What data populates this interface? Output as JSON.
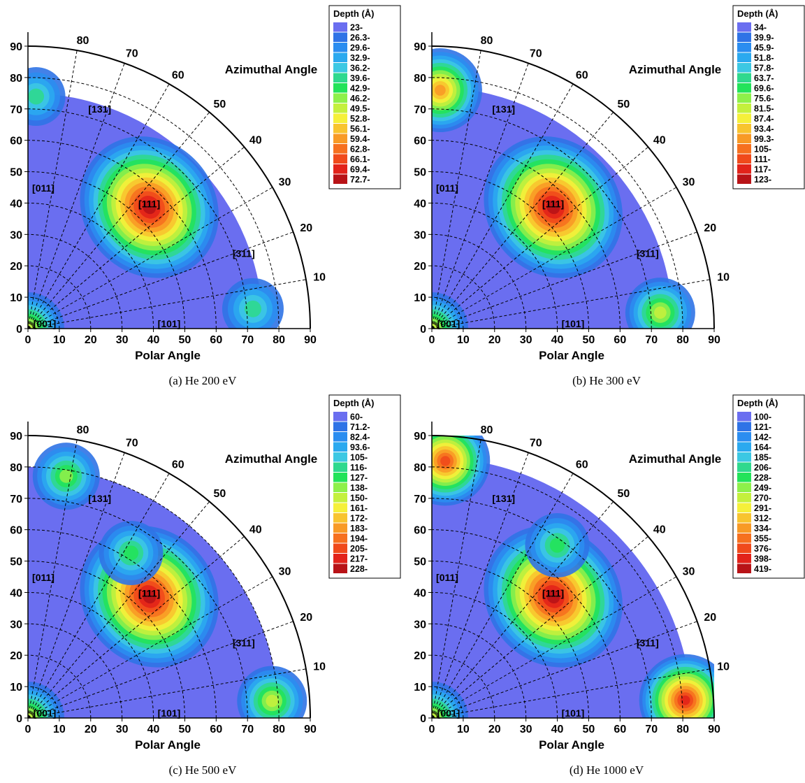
{
  "chart_data": [
    {
      "type": "heatmap",
      "subtype": "polar-quadrant",
      "caption": "(a) He 200 eV",
      "xlabel": "Polar Angle",
      "azimuth_label": "Azimuthal Angle",
      "x_ticks": [
        "0",
        "10",
        "20",
        "30",
        "40",
        "50",
        "60",
        "70",
        "80",
        "90"
      ],
      "y_ticks": [
        "0",
        "10",
        "20",
        "30",
        "40",
        "50",
        "60",
        "70",
        "80",
        "90"
      ],
      "xlim": [
        0,
        90
      ],
      "ylim": [
        0,
        90
      ],
      "azimuth_ticks": [
        "10",
        "20",
        "30",
        "40",
        "50",
        "60",
        "70",
        "80"
      ],
      "poles": [
        {
          "label": "[001]",
          "polar": 0,
          "azimuth": 0
        },
        {
          "label": "[101]",
          "polar": 45,
          "azimuth": 0
        },
        {
          "label": "[011]",
          "polar": 45,
          "azimuth": 90
        },
        {
          "label": "[111]",
          "polar": 54.7,
          "azimuth": 45
        },
        {
          "label": "[131]",
          "polar": 72.5,
          "azimuth": 71.6
        },
        {
          "label": "[311]",
          "polar": 72.5,
          "azimuth": 18.4
        }
      ],
      "legend_title": "Depth (Å)",
      "legend_values": [
        "23-",
        "26.3-",
        "29.6-",
        "32.9-",
        "36.2-",
        "39.6-",
        "42.9-",
        "46.2-",
        "49.5-",
        "52.8-",
        "56.1-",
        "59.4-",
        "62.8-",
        "66.1-",
        "69.4-",
        "72.7-"
      ],
      "legend_placement": "top-right",
      "data_extent_polar": 75,
      "hotspots": [
        {
          "polar": 0,
          "azimuth": 0,
          "level": 0.55
        },
        {
          "polar": 54.7,
          "azimuth": 45,
          "level": 1.0
        },
        {
          "polar": 72,
          "azimuth": 5,
          "level": 0.35
        },
        {
          "polar": 74,
          "azimuth": 88,
          "level": 0.3
        }
      ]
    },
    {
      "type": "heatmap",
      "subtype": "polar-quadrant",
      "caption": "(b) He 300 eV",
      "xlabel": "Polar Angle",
      "azimuth_label": "Azimuthal Angle",
      "x_ticks": [
        "0",
        "10",
        "20",
        "30",
        "40",
        "50",
        "60",
        "70",
        "80",
        "90"
      ],
      "y_ticks": [
        "0",
        "10",
        "20",
        "30",
        "40",
        "50",
        "60",
        "70",
        "80",
        "90"
      ],
      "xlim": [
        0,
        90
      ],
      "ylim": [
        0,
        90
      ],
      "azimuth_ticks": [
        "10",
        "20",
        "30",
        "40",
        "50",
        "60",
        "70",
        "80"
      ],
      "poles": [
        {
          "label": "[001]",
          "polar": 0,
          "azimuth": 0
        },
        {
          "label": "[101]",
          "polar": 45,
          "azimuth": 0
        },
        {
          "label": "[011]",
          "polar": 45,
          "azimuth": 90
        },
        {
          "label": "[111]",
          "polar": 54.7,
          "azimuth": 45
        },
        {
          "label": "[131]",
          "polar": 72.5,
          "azimuth": 71.6
        },
        {
          "label": "[311]",
          "polar": 72.5,
          "azimuth": 18.4
        }
      ],
      "legend_title": "Depth (Å)",
      "legend_values": [
        "34-",
        "39.9-",
        "45.9-",
        "51.8-",
        "57.8-",
        "63.7-",
        "69.6-",
        "75.6-",
        "81.5-",
        "87.4-",
        "93.4-",
        "99.3-",
        "105-",
        "111-",
        "117-",
        "123-"
      ],
      "legend_placement": "top-right",
      "data_extent_polar": 77,
      "hotspots": [
        {
          "polar": 0,
          "azimuth": 0,
          "level": 0.55
        },
        {
          "polar": 54.7,
          "azimuth": 45,
          "level": 1.0
        },
        {
          "polar": 73,
          "azimuth": 4,
          "level": 0.5
        },
        {
          "polar": 76,
          "azimuth": 88,
          "level": 0.75
        }
      ]
    },
    {
      "type": "heatmap",
      "subtype": "polar-quadrant",
      "caption": "(c) He 500 eV",
      "xlabel": "Polar Angle",
      "azimuth_label": "Azimuthal Angle",
      "x_ticks": [
        "0",
        "10",
        "20",
        "30",
        "40",
        "50",
        "60",
        "70",
        "80",
        "90"
      ],
      "y_ticks": [
        "0",
        "10",
        "20",
        "30",
        "40",
        "50",
        "60",
        "70",
        "80",
        "90"
      ],
      "xlim": [
        0,
        90
      ],
      "ylim": [
        0,
        90
      ],
      "azimuth_ticks": [
        "10",
        "20",
        "30",
        "40",
        "50",
        "60",
        "70",
        "80"
      ],
      "poles": [
        {
          "label": "[001]",
          "polar": 0,
          "azimuth": 0
        },
        {
          "label": "[101]",
          "polar": 45,
          "azimuth": 0
        },
        {
          "label": "[011]",
          "polar": 45,
          "azimuth": 90
        },
        {
          "label": "[111]",
          "polar": 54.7,
          "azimuth": 45
        },
        {
          "label": "[131]",
          "polar": 72.5,
          "azimuth": 71.6
        },
        {
          "label": "[311]",
          "polar": 72.5,
          "azimuth": 18.4
        }
      ],
      "legend_title": "Depth (Å)",
      "legend_values": [
        "60-",
        "71.2-",
        "82.4-",
        "93.6-",
        "105-",
        "116-",
        "127-",
        "138-",
        "150-",
        "161-",
        "172-",
        "183-",
        "194-",
        "205-",
        "217-",
        "228-"
      ],
      "legend_placement": "top-right",
      "data_extent_polar": 80,
      "hotspots": [
        {
          "polar": 0,
          "azimuth": 0,
          "level": 0.55
        },
        {
          "polar": 54.7,
          "azimuth": 45,
          "level": 1.0
        },
        {
          "polar": 78,
          "azimuth": 4,
          "level": 0.5
        },
        {
          "polar": 78,
          "azimuth": 81,
          "level": 0.45
        },
        {
          "polar": 62,
          "azimuth": 58,
          "level": 0.4
        }
      ]
    },
    {
      "type": "heatmap",
      "subtype": "polar-quadrant",
      "caption": "(d) He 1000 eV",
      "xlabel": "Polar Angle",
      "azimuth_label": "Azimuthal Angle",
      "x_ticks": [
        "0",
        "10",
        "20",
        "30",
        "40",
        "50",
        "60",
        "70",
        "80",
        "90"
      ],
      "y_ticks": [
        "0",
        "10",
        "20",
        "30",
        "40",
        "50",
        "60",
        "70",
        "80",
        "90"
      ],
      "xlim": [
        0,
        90
      ],
      "ylim": [
        0,
        90
      ],
      "azimuth_ticks": [
        "10",
        "20",
        "30",
        "40",
        "50",
        "60",
        "70",
        "80"
      ],
      "poles": [
        {
          "label": "[001]",
          "polar": 0,
          "azimuth": 0
        },
        {
          "label": "[101]",
          "polar": 45,
          "azimuth": 0
        },
        {
          "label": "[011]",
          "polar": 45,
          "azimuth": 90
        },
        {
          "label": "[111]",
          "polar": 54.7,
          "azimuth": 45
        },
        {
          "label": "[131]",
          "polar": 72.5,
          "azimuth": 71.6
        },
        {
          "label": "[311]",
          "polar": 72.5,
          "azimuth": 18.4
        }
      ],
      "legend_title": "Depth (Å)",
      "legend_values": [
        "100-",
        "121-",
        "142-",
        "164-",
        "185-",
        "206-",
        "228-",
        "249-",
        "270-",
        "291-",
        "312-",
        "334-",
        "355-",
        "376-",
        "398-",
        "419-"
      ],
      "legend_placement": "top-right",
      "data_extent_polar": 83,
      "hotspots": [
        {
          "polar": 0,
          "azimuth": 0,
          "level": 0.55
        },
        {
          "polar": 54.7,
          "azimuth": 45,
          "level": 1.0
        },
        {
          "polar": 81,
          "azimuth": 4,
          "level": 0.9
        },
        {
          "polar": 82,
          "azimuth": 87,
          "level": 0.85
        },
        {
          "polar": 68,
          "azimuth": 54,
          "level": 0.4
        }
      ]
    }
  ],
  "colors": {
    "scale": [
      "#6a6ef0",
      "#2f73e6",
      "#2b8df0",
      "#2ba9ef",
      "#3cc8e3",
      "#2fd98e",
      "#23e35a",
      "#8ef04a",
      "#c4f03d",
      "#f5f03a",
      "#f8c42f",
      "#f89a26",
      "#f6701f",
      "#f04a1b",
      "#e2231a",
      "#b81317"
    ],
    "frame": "#000000",
    "grid": "#000000"
  }
}
